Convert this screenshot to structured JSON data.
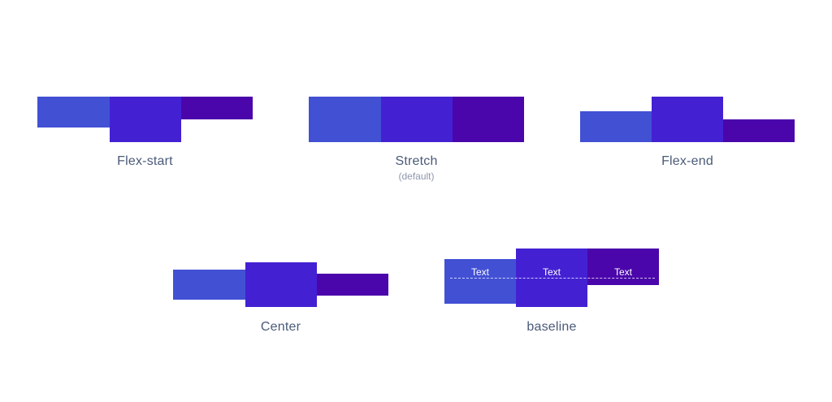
{
  "groups": {
    "flex_start": {
      "caption": "Flex-start"
    },
    "stretch": {
      "caption": "Stretch",
      "subcaption": "(default)"
    },
    "flex_end": {
      "caption": "Flex-end"
    },
    "center": {
      "caption": "Center"
    },
    "baseline": {
      "caption": "baseline",
      "item_texts": [
        "Text",
        "Text",
        "Text"
      ]
    }
  },
  "colors": {
    "item1": "#4250d4",
    "item2": "#4321d2",
    "item3": "#4a06ab",
    "caption": "#4a5a78",
    "subcaption": "#8d97ad"
  }
}
